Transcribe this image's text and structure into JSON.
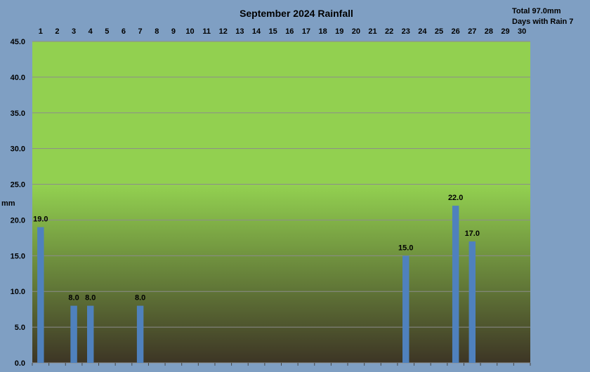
{
  "chart_data": {
    "type": "bar",
    "title": "September 2024 Rainfall",
    "ylabel": "mm",
    "categories": [
      "1",
      "2",
      "3",
      "4",
      "5",
      "6",
      "7",
      "8",
      "9",
      "10",
      "11",
      "12",
      "13",
      "14",
      "15",
      "16",
      "17",
      "18",
      "19",
      "20",
      "21",
      "22",
      "23",
      "24",
      "25",
      "26",
      "27",
      "28",
      "29",
      "30"
    ],
    "values": [
      19.0,
      0,
      8.0,
      8.0,
      0,
      0,
      8.0,
      0,
      0,
      0,
      0,
      0,
      0,
      0,
      0,
      0,
      0,
      0,
      0,
      0,
      0,
      0,
      15.0,
      0,
      0,
      22.0,
      17.0,
      0,
      0,
      0
    ],
    "data_labels": [
      "19.0",
      "",
      "8.0",
      "8.0",
      "",
      "",
      "8.0",
      "",
      "",
      "",
      "",
      "",
      "",
      "",
      "",
      "",
      "",
      "",
      "",
      "",
      "",
      "",
      "15.0",
      "",
      "",
      "22.0",
      "17.0",
      "",
      "",
      ""
    ],
    "ylim": [
      0,
      45
    ],
    "yticks": [
      "0.0",
      "5.0",
      "10.0",
      "15.0",
      "20.0",
      "25.0",
      "30.0",
      "35.0",
      "40.0",
      "45.0"
    ],
    "grid": true,
    "x_axis_position": "top",
    "bar_color": "#4f81bd",
    "plot_gradient": [
      "#92d050",
      "#92d050",
      "#3d3525"
    ],
    "background_color": "#7f9fc3"
  },
  "summary": {
    "total": "Total 97.0mm",
    "rain_days": "Days with Rain 7"
  }
}
